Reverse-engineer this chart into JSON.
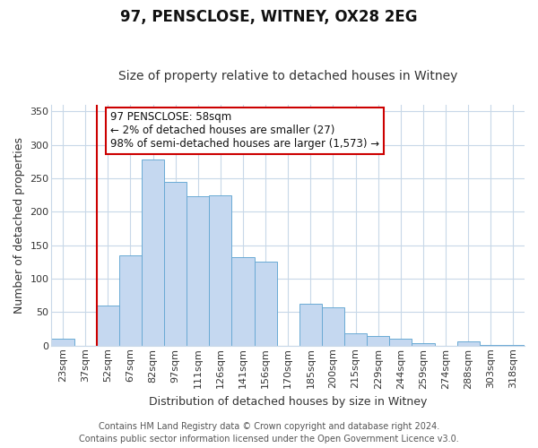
{
  "title": "97, PENSCLOSE, WITNEY, OX28 2EG",
  "subtitle": "Size of property relative to detached houses in Witney",
  "xlabel": "Distribution of detached houses by size in Witney",
  "ylabel": "Number of detached properties",
  "categories": [
    "23sqm",
    "37sqm",
    "52sqm",
    "67sqm",
    "82sqm",
    "97sqm",
    "111sqm",
    "126sqm",
    "141sqm",
    "156sqm",
    "170sqm",
    "185sqm",
    "200sqm",
    "215sqm",
    "229sqm",
    "244sqm",
    "259sqm",
    "274sqm",
    "288sqm",
    "303sqm",
    "318sqm"
  ],
  "values": [
    10,
    0,
    60,
    135,
    278,
    245,
    223,
    225,
    132,
    125,
    0,
    62,
    57,
    18,
    15,
    10,
    4,
    0,
    6,
    1,
    1
  ],
  "bar_color": "#c5d8f0",
  "bar_edge_color": "#6aaad4",
  "vline_x": 2,
  "vline_color": "#cc0000",
  "annotation_text": "97 PENSCLOSE: 58sqm\n← 2% of detached houses are smaller (27)\n98% of semi-detached houses are larger (1,573) →",
  "annotation_box_color": "#ffffff",
  "annotation_box_edge_color": "#cc0000",
  "ylim": [
    0,
    360
  ],
  "footer1": "Contains HM Land Registry data © Crown copyright and database right 2024.",
  "footer2": "Contains public sector information licensed under the Open Government Licence v3.0.",
  "plot_bg_color": "#ffffff",
  "fig_bg_color": "#ffffff",
  "grid_color": "#c8d8e8",
  "title_fontsize": 12,
  "subtitle_fontsize": 10,
  "axis_label_fontsize": 9,
  "tick_fontsize": 8,
  "annotation_fontsize": 8.5,
  "footer_fontsize": 7
}
